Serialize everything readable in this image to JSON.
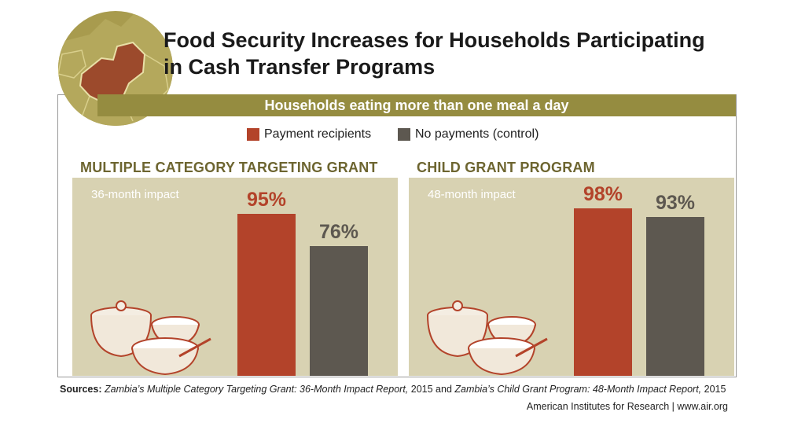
{
  "title_line1": "Food Security Increases for Households Participating",
  "title_line2": "in Cash Transfer Programs",
  "banner": "Households eating more than one meal a day",
  "legend": {
    "recipients": "Payment recipients",
    "control": "No payments (control)"
  },
  "colors": {
    "recipients": "#b3432a",
    "control": "#5d5850",
    "panel": "#d8d2b2",
    "accent": "#958c40"
  },
  "chart_data": [
    {
      "type": "bar",
      "title": "MULTIPLE CATEGORY TARGETING GRANT",
      "subtitle": "36-month impact",
      "categories": [
        "Payment recipients",
        "No payments (control)"
      ],
      "values": [
        95,
        76
      ],
      "labels": [
        "95%",
        "76%"
      ],
      "ylim": [
        0,
        100
      ]
    },
    {
      "type": "bar",
      "title": "CHILD GRANT PROGRAM",
      "subtitle": "48-month impact",
      "categories": [
        "Payment recipients",
        "No payments (control)"
      ],
      "values": [
        98,
        93
      ],
      "labels": [
        "98%",
        "93%"
      ],
      "ylim": [
        0,
        100
      ]
    }
  ],
  "sources": {
    "prefix": "Sources:",
    "ref1": "Zambia’s Multiple Category Targeting Grant: 36-Month Impact Report,",
    "mid": " 2015 and ",
    "ref2": "Zambia’s Child Grant Program: 48-Month Impact Report,",
    "suffix": " 2015"
  },
  "credit": "American Institutes for Research | www.air.org"
}
